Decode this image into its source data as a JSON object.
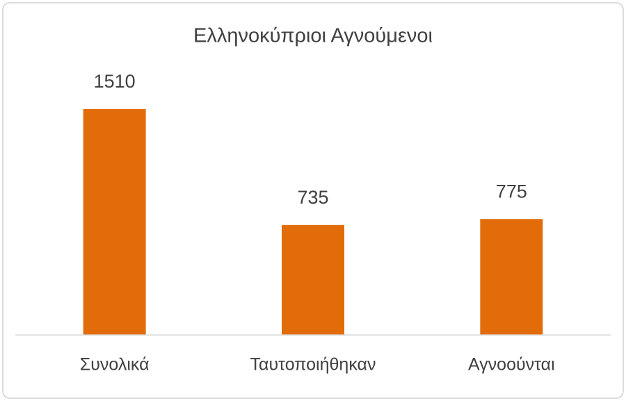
{
  "chart_data": {
    "type": "bar",
    "title": "Ελληνοκύπριοι Αγνούμενοι",
    "categories": [
      "Συνολικά",
      "Ταυτοποιήθηκαν",
      "Αγνοούνται"
    ],
    "values": [
      1510,
      735,
      775
    ],
    "color": "#e36c0a"
  }
}
